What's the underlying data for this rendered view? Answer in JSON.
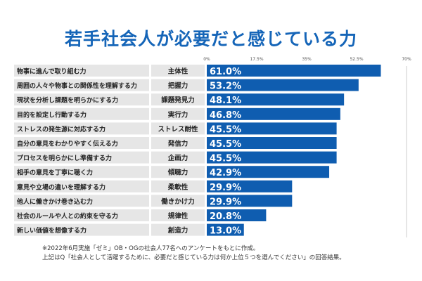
{
  "chart_data": {
    "type": "bar",
    "orientation": "horizontal",
    "title": "若手社会人が必要だと感じている力",
    "categories": [
      "物事に進んで取り組む力",
      "周囲の人々や物事との関係性を理解する力",
      "現状を分析し課題を明らかにする力",
      "目的を設定し行動する力",
      "ストレスの発生源に対応する力",
      "自分の意見をわかりやすく伝える力",
      "プロセスを明らかにし準備する力",
      "相手の意見を丁寧に聴く力",
      "意見や立場の違いを理解する力",
      "他人に働きかけ巻き込む力",
      "社会のルールや人との約束を守る力",
      "新しい価値を想像する力"
    ],
    "short_labels": [
      "主体性",
      "把握力",
      "課題発見力",
      "実行力",
      "ストレス耐性",
      "発信力",
      "企画力",
      "傾聴力",
      "柔軟性",
      "働きかけ力",
      "規律性",
      "創造力"
    ],
    "values": [
      61.0,
      53.2,
      48.1,
      46.8,
      45.5,
      45.5,
      45.5,
      42.9,
      29.9,
      29.9,
      20.8,
      13.0
    ],
    "value_labels": [
      "61.0%",
      "53.2%",
      "48.1%",
      "46.8%",
      "45.5%",
      "45.5%",
      "45.5%",
      "42.9%",
      "29.9%",
      "29.9%",
      "20.8%",
      "13.0%"
    ],
    "xlim": [
      0,
      70
    ],
    "ticks": [
      0,
      17.5,
      35,
      52.5,
      70
    ],
    "tick_labels": [
      "0%",
      "17.5%",
      "35%",
      "52.5%",
      "70%"
    ],
    "bar_color": "#0f5db0",
    "label_bg": "#e6e6e6"
  },
  "note": {
    "line1": "※2022年6月実施「ゼミ」OB・OGの社会人77名へのアンケートをもとに作成。",
    "line2": "上記はQ「社会人として活躍するために、必要だと感じている力は何か上位５つを選んでください」の回答結果。"
  }
}
